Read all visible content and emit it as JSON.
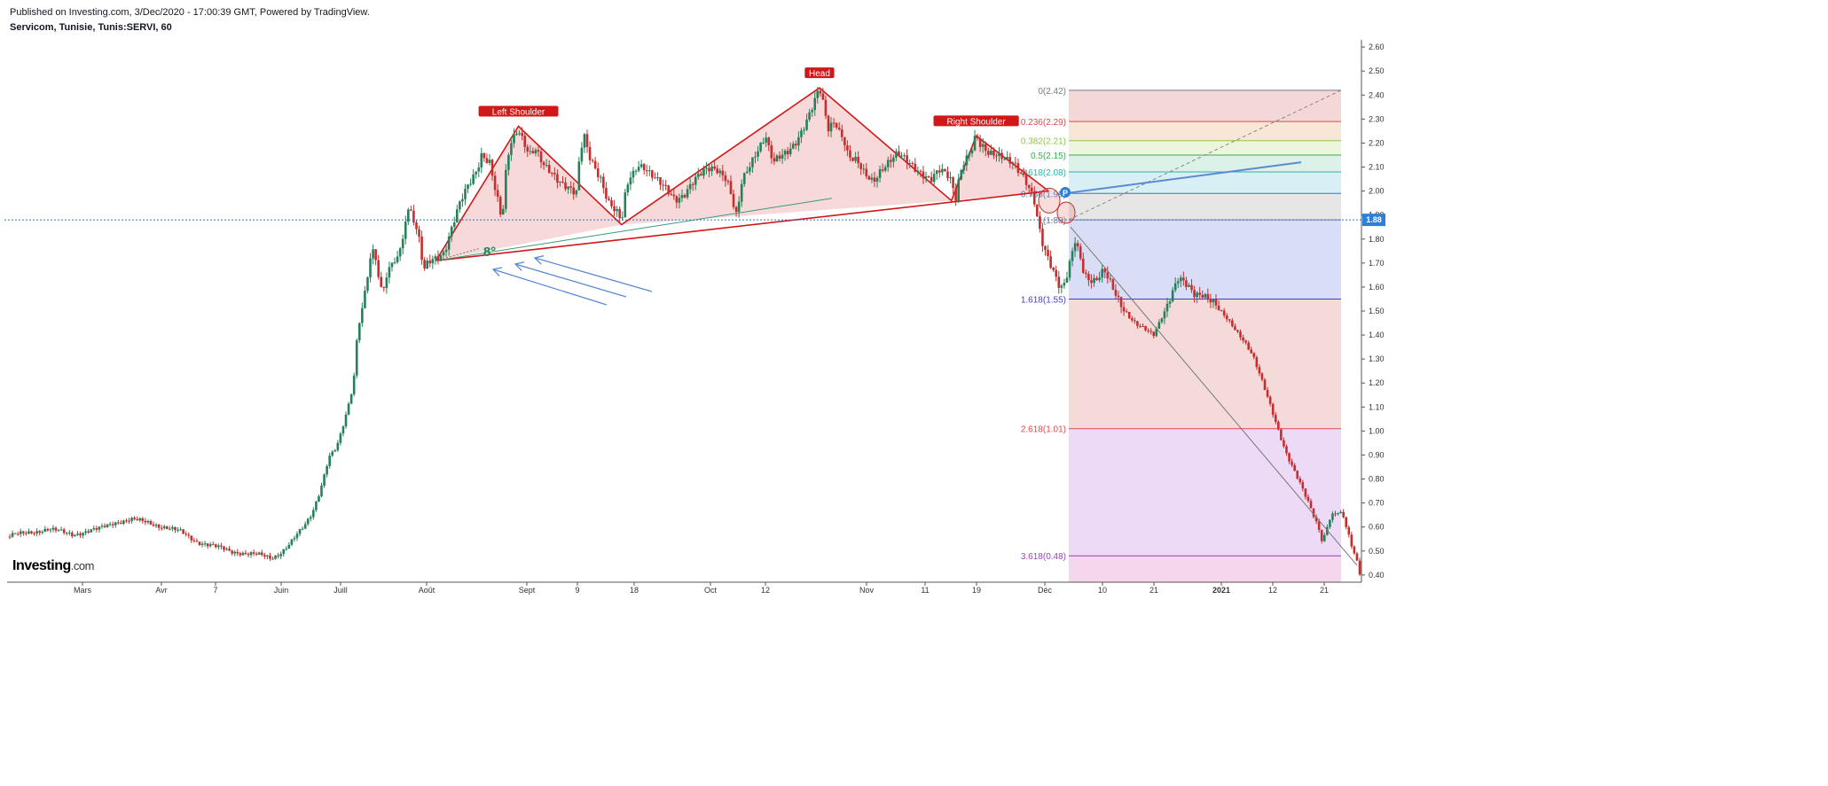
{
  "header": {
    "published": "Published on Investing.com, 3/Dec/2020 - 17:00:39 GMT, Powered by TradingView.",
    "symbol": "Servicom, Tunisie, Tunis:SERVI, 60"
  },
  "logo": {
    "name": "Investing",
    "suffix": ".com"
  },
  "chart_data": {
    "type": "candlestick",
    "y_axis": {
      "ticks": [
        "2.60",
        "2.50",
        "2.40",
        "2.30",
        "2.20",
        "2.10",
        "2.00",
        "1.90",
        "1.80",
        "1.70",
        "1.60",
        "1.50",
        "1.40",
        "1.30",
        "1.20",
        "1.10",
        "1.00",
        "0.90",
        "0.80",
        "0.70",
        "0.60",
        "0.50",
        "0.40"
      ],
      "min": 0.37,
      "max": 2.63
    },
    "x_axis": {
      "ticks": [
        "Mars",
        "Avr",
        "7",
        "Juin",
        "Juill",
        "Août",
        "Sept",
        "9",
        "18",
        "Oct",
        "12",
        "Nov",
        "11",
        "19",
        "Déc",
        "10",
        "21",
        "2021",
        "12",
        "21"
      ]
    },
    "last_price": "1.88",
    "price_path": [
      [
        0,
        0.56
      ],
      [
        6,
        0.58
      ],
      [
        10,
        0.59
      ],
      [
        16,
        0.57
      ],
      [
        22,
        0.59
      ],
      [
        26,
        0.62
      ],
      [
        30,
        0.63
      ],
      [
        34,
        0.62
      ],
      [
        38,
        0.6
      ],
      [
        42,
        0.58
      ],
      [
        46,
        0.54
      ],
      [
        50,
        0.52
      ],
      [
        54,
        0.5
      ],
      [
        58,
        0.49
      ],
      [
        62,
        0.48
      ],
      [
        64,
        0.47
      ],
      [
        66,
        0.49
      ],
      [
        68,
        0.52
      ],
      [
        70,
        0.56
      ],
      [
        72,
        0.6
      ],
      [
        74,
        0.66
      ],
      [
        76,
        0.76
      ],
      [
        78,
        0.89
      ],
      [
        80,
        0.93
      ],
      [
        82,
        1.05
      ],
      [
        84,
        1.2
      ],
      [
        85,
        1.43
      ],
      [
        86,
        1.5
      ],
      [
        87,
        1.62
      ],
      [
        88,
        1.7
      ],
      [
        89,
        1.77
      ],
      [
        90,
        1.62
      ],
      [
        91,
        1.58
      ],
      [
        92,
        1.62
      ],
      [
        93,
        1.72
      ],
      [
        94,
        1.7
      ],
      [
        95,
        1.77
      ],
      [
        96,
        1.8
      ],
      [
        97,
        1.94
      ],
      [
        98,
        1.9
      ],
      [
        99,
        1.85
      ],
      [
        100,
        1.78
      ],
      [
        101,
        1.66
      ],
      [
        102,
        1.7
      ],
      [
        103,
        1.72
      ],
      [
        104,
        1.73
      ],
      [
        106,
        1.75
      ],
      [
        108,
        1.85
      ],
      [
        110,
        1.95
      ],
      [
        112,
        2.03
      ],
      [
        114,
        2.1
      ],
      [
        115,
        2.16
      ],
      [
        117,
        2.12
      ],
      [
        118,
        2.03
      ],
      [
        119,
        1.95
      ],
      [
        120,
        1.86
      ],
      [
        121,
        2.08
      ],
      [
        122,
        2.2
      ],
      [
        124,
        2.27
      ],
      [
        126,
        2.18
      ],
      [
        127,
        2.15
      ],
      [
        128,
        2.17
      ],
      [
        130,
        2.1
      ],
      [
        132,
        2.08
      ],
      [
        134,
        2.05
      ],
      [
        136,
        2.02
      ],
      [
        138,
        1.98
      ],
      [
        139,
        2.16
      ],
      [
        140,
        2.22
      ],
      [
        141,
        2.15
      ],
      [
        142,
        2.12
      ],
      [
        144,
        2.06
      ],
      [
        145,
        2.0
      ],
      [
        146,
        1.95
      ],
      [
        148,
        1.9
      ],
      [
        149,
        1.86
      ],
      [
        150,
        1.99
      ],
      [
        151,
        2.06
      ],
      [
        152,
        2.08
      ],
      [
        153,
        2.12
      ],
      [
        155,
        2.1
      ],
      [
        156,
        2.07
      ],
      [
        157,
        2.05
      ],
      [
        158,
        2.03
      ],
      [
        160,
        2.0
      ],
      [
        162,
        1.97
      ],
      [
        164,
        1.99
      ],
      [
        166,
        2.03
      ],
      [
        168,
        2.06
      ],
      [
        170,
        2.09
      ],
      [
        172,
        2.1
      ],
      [
        174,
        2.07
      ],
      [
        175,
        2.03
      ],
      [
        176,
        1.95
      ],
      [
        177,
        1.88
      ],
      [
        178,
        2.02
      ],
      [
        180,
        2.1
      ],
      [
        182,
        2.18
      ],
      [
        184,
        2.24
      ],
      [
        185,
        2.16
      ],
      [
        186,
        2.12
      ],
      [
        188,
        2.14
      ],
      [
        189,
        2.15
      ],
      [
        191,
        2.2
      ],
      [
        193,
        2.27
      ],
      [
        195,
        2.34
      ],
      [
        197,
        2.42
      ],
      [
        198,
        2.35
      ],
      [
        199,
        2.25
      ],
      [
        200,
        2.28
      ],
      [
        201,
        2.29
      ],
      [
        202,
        2.25
      ],
      [
        203,
        2.22
      ],
      [
        204,
        2.15
      ],
      [
        206,
        2.12
      ],
      [
        208,
        2.06
      ],
      [
        210,
        2.04
      ],
      [
        212,
        2.1
      ],
      [
        214,
        2.13
      ],
      [
        216,
        2.15
      ],
      [
        218,
        2.12
      ],
      [
        220,
        2.1
      ],
      [
        222,
        2.08
      ],
      [
        224,
        2.05
      ],
      [
        226,
        2.08
      ],
      [
        228,
        2.06
      ],
      [
        229,
        2.04
      ],
      [
        230,
        1.97
      ],
      [
        231,
        2.08
      ],
      [
        232,
        2.13
      ],
      [
        234,
        2.18
      ],
      [
        235,
        2.23
      ],
      [
        236,
        2.18
      ],
      [
        238,
        2.15
      ],
      [
        240,
        2.16
      ],
      [
        242,
        2.15
      ],
      [
        243,
        2.13
      ],
      [
        244,
        2.12
      ],
      [
        245,
        2.08
      ],
      [
        246,
        2.06
      ],
      [
        247,
        2.03
      ],
      [
        248,
        2.0
      ],
      [
        249,
        1.97
      ],
      [
        250,
        1.88
      ],
      [
        251,
        1.8
      ],
      [
        252,
        1.75
      ],
      [
        253,
        1.7
      ],
      [
        254,
        1.65
      ],
      [
        255,
        1.6
      ],
      [
        256,
        1.58
      ],
      [
        257,
        1.64
      ],
      [
        258,
        1.72
      ],
      [
        259,
        1.8
      ],
      [
        260,
        1.75
      ],
      [
        261,
        1.68
      ],
      [
        262,
        1.64
      ],
      [
        264,
        1.62
      ],
      [
        266,
        1.66
      ],
      [
        268,
        1.6
      ],
      [
        270,
        1.54
      ],
      [
        272,
        1.48
      ],
      [
        274,
        1.44
      ],
      [
        276,
        1.42
      ],
      [
        278,
        1.4
      ],
      [
        280,
        1.48
      ],
      [
        282,
        1.56
      ],
      [
        284,
        1.63
      ],
      [
        286,
        1.6
      ],
      [
        288,
        1.57
      ],
      [
        290,
        1.58
      ],
      [
        292,
        1.55
      ],
      [
        294,
        1.5
      ],
      [
        296,
        1.46
      ],
      [
        298,
        1.42
      ],
      [
        300,
        1.38
      ],
      [
        302,
        1.32
      ],
      [
        304,
        1.22
      ],
      [
        306,
        1.12
      ],
      [
        308,
        1.02
      ],
      [
        310,
        0.92
      ],
      [
        312,
        0.84
      ],
      [
        314,
        0.76
      ],
      [
        316,
        0.68
      ],
      [
        318,
        0.6
      ],
      [
        319,
        0.54
      ],
      [
        320,
        0.6
      ],
      [
        321,
        0.65
      ],
      [
        323,
        0.66
      ],
      [
        324,
        0.64
      ],
      [
        325,
        0.58
      ],
      [
        326,
        0.52
      ],
      [
        327,
        0.48
      ],
      [
        328,
        0.41
      ]
    ],
    "pattern": {
      "labels": [
        "Left Shoulder",
        "Head",
        "Right Shoulder"
      ],
      "angle_label": "8°",
      "neckline_points": [
        [
          1.71,
          "Jul-28"
        ],
        [
          1.99,
          "Dec-01"
        ]
      ]
    },
    "fibonacci": [
      {
        "label": "0(2.42)",
        "level": 2.42,
        "color": "#787b86",
        "fill": "#f2d0d0"
      },
      {
        "label": "0.236(2.29)",
        "level": 2.29,
        "color": "#e04848",
        "fill": "#f7e2cf"
      },
      {
        "label": "0.382(2.21)",
        "level": 2.21,
        "color": "#8fc640",
        "fill": "#e9f4d6"
      },
      {
        "label": "0.5(2.15)",
        "level": 2.15,
        "color": "#33b04a",
        "fill": "#d6efe4"
      },
      {
        "label": "0.618(2.08)",
        "level": 2.08,
        "color": "#2cb2a8",
        "fill": "#d2ecf4"
      },
      {
        "label": "0.786(1.99)",
        "level": 1.99,
        "color": "#2b7dc9",
        "fill": "#e2e2e2"
      },
      {
        "label": "1(1.88)",
        "level": 1.88,
        "color": "#787b86",
        "fill": "#d3d7f5"
      },
      {
        "label": "1.618(1.55)",
        "level": 1.55,
        "color": "#3f3fc4",
        "fill": "#f3d3d3"
      },
      {
        "label": "2.618(1.01)",
        "level": 1.01,
        "color": "#e04848",
        "fill": "#e9d3f4"
      },
      {
        "label": "3.618(0.48)",
        "level": 0.48,
        "color": "#9c3fc4",
        "fill": "#f2d0ea"
      }
    ],
    "colors": {
      "up": "#26805a",
      "down": "#c62e2e",
      "pattern": "#d01818",
      "fib_zone_fill": "rgba(255,255,255,0)",
      "trend": "#5b8ad0"
    },
    "marker": "P"
  }
}
